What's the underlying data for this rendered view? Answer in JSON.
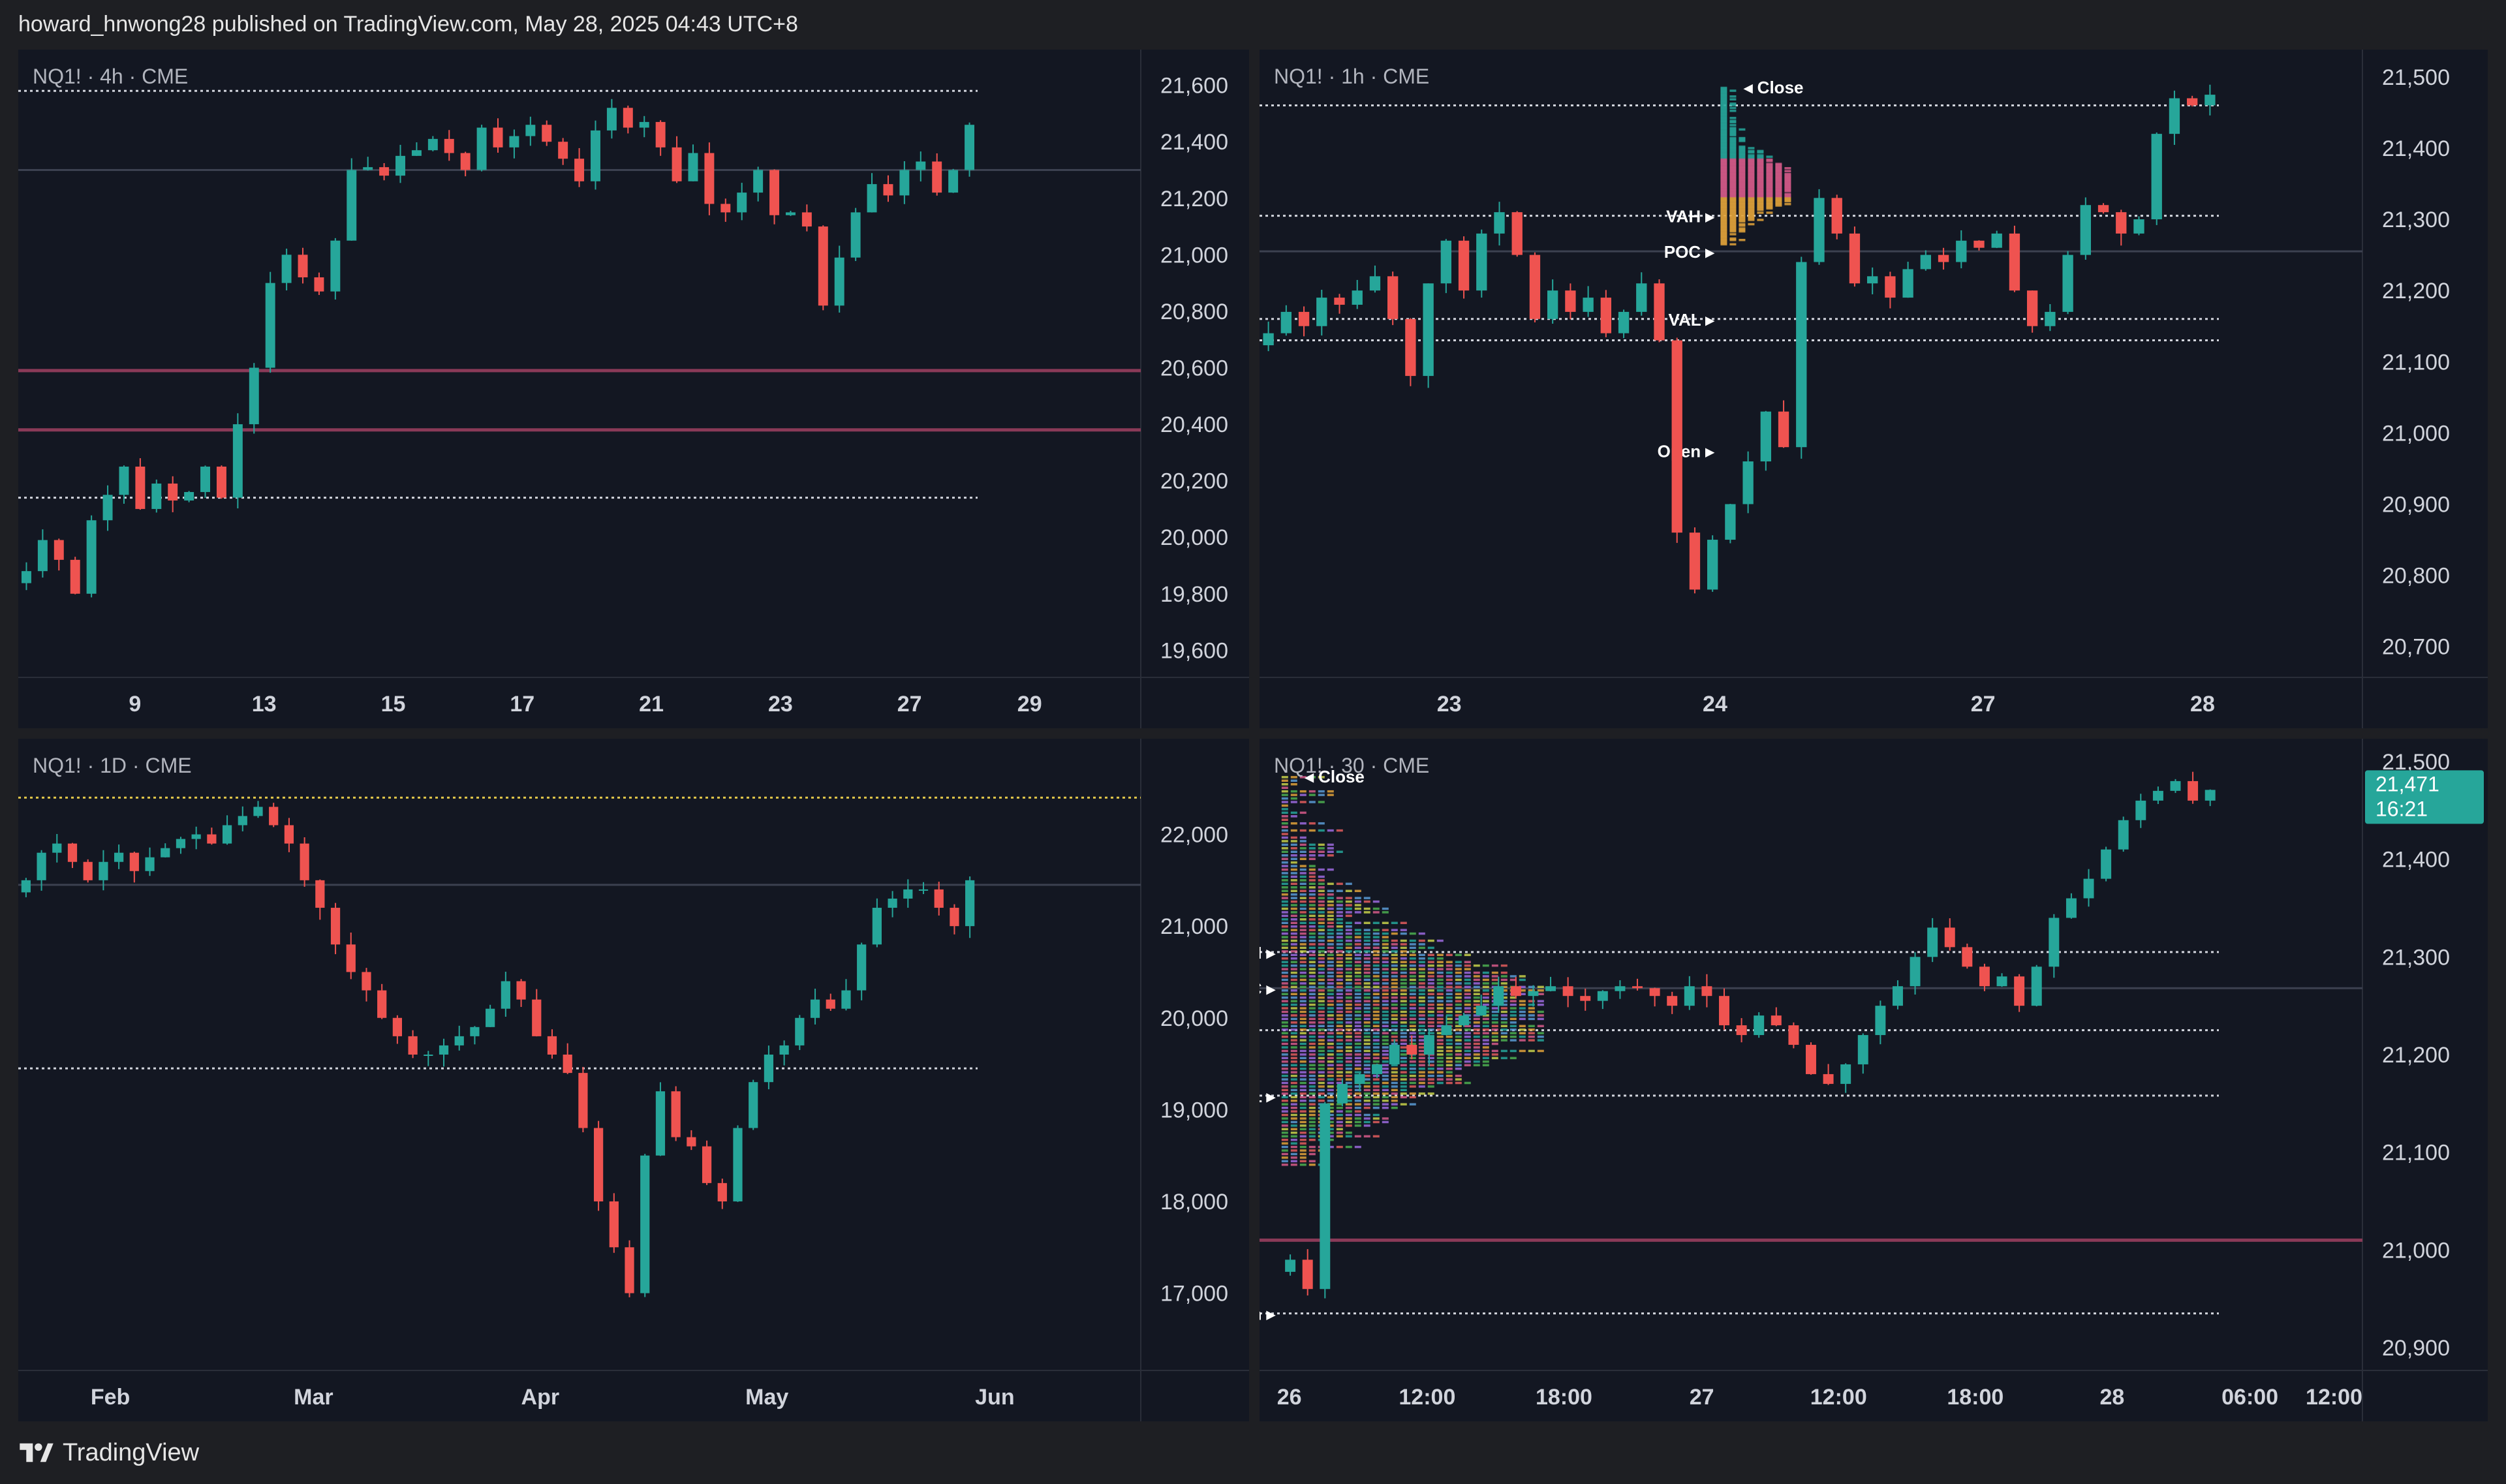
{
  "header": {
    "text": "howard_hnwong28 published on TradingView.com, May 28, 2025 04:43 UTC+8"
  },
  "footer": {
    "brand": "TradingView",
    "icon": "tradingview-logo-icon"
  },
  "colors": {
    "up": "#26a69a",
    "down": "#ef5350",
    "bg": "#131722",
    "level": "#8a3a58",
    "price_label": "#26a69a"
  },
  "chart_data": [
    {
      "type": "candlestick",
      "title": "NQ1! · 4h · CME",
      "y_ticks": [
        "21,600",
        "21,400",
        "21,200",
        "21,000",
        "20,800",
        "20,600",
        "20,400",
        "20,200",
        "20,000",
        "19,800",
        "19,600"
      ],
      "ylim": [
        19550,
        21680
      ],
      "x_ticks": [
        "9",
        "13",
        "15",
        "17",
        "21",
        "23",
        "27",
        "29"
      ],
      "levels": [
        {
          "value": 21580,
          "style": "dotted"
        },
        {
          "value": 21300,
          "style": "solid-gray"
        },
        {
          "value": 20590,
          "style": "solid-maroon"
        },
        {
          "value": 20380,
          "style": "solid-maroon"
        },
        {
          "value": 20140,
          "style": "dotted"
        }
      ],
      "closes": [
        19880,
        19990,
        19920,
        19800,
        20060,
        20150,
        20250,
        20100,
        20190,
        20130,
        20160,
        20250,
        20140,
        20400,
        20600,
        20900,
        21000,
        20920,
        20870,
        21050,
        21300,
        21310,
        21280,
        21350,
        21370,
        21410,
        21360,
        21300,
        21450,
        21380,
        21420,
        21460,
        21400,
        21340,
        21260,
        21440,
        21520,
        21450,
        21470,
        21380,
        21260,
        21360,
        21180,
        21150,
        21220,
        21300,
        21140,
        21150,
        21100,
        20820,
        20990,
        21150,
        21250,
        21210,
        21300,
        21330,
        21220,
        21300,
        21460
      ]
    },
    {
      "type": "candlestick",
      "title": "NQ1! · 1h · CME",
      "y_ticks": [
        "21,500",
        "21,400",
        "21,300",
        "21,200",
        "21,100",
        "21,000",
        "20,900",
        "20,800",
        "20,700"
      ],
      "ylim": [
        20675,
        21520
      ],
      "x_ticks": [
        "23",
        "24",
        "27",
        "28"
      ],
      "levels": [
        {
          "value": 21460,
          "style": "dotted"
        },
        {
          "value": 21305,
          "style": "dotted"
        },
        {
          "value": 21255,
          "style": "solid-gray"
        },
        {
          "value": 21160,
          "style": "dotted"
        },
        {
          "value": 21130,
          "style": "dotted"
        }
      ],
      "profile_labels": [
        "Close",
        "VAH",
        "POC",
        "VAL",
        "Open"
      ],
      "closes": [
        21140,
        21170,
        21150,
        21190,
        21180,
        21200,
        21220,
        21160,
        21080,
        21210,
        21270,
        21200,
        21280,
        21310,
        21250,
        21160,
        21200,
        21170,
        21190,
        21140,
        21170,
        21210,
        21130,
        20860,
        20780,
        20850,
        20900,
        20960,
        21030,
        20980,
        21240,
        21330,
        21280,
        21210,
        21220,
        21190,
        21230,
        21250,
        21240,
        21270,
        21260,
        21280,
        21200,
        21150,
        21170,
        21250,
        21320,
        21310,
        21280,
        21300,
        21420,
        21470,
        21460,
        21475
      ]
    },
    {
      "type": "candlestick",
      "title": "NQ1! · 1D · CME",
      "y_ticks": [
        "22,000",
        "21,000",
        "20,000",
        "19,000",
        "18,000",
        "17,000"
      ],
      "ylim": [
        16300,
        22900
      ],
      "x_ticks": [
        "Feb",
        "Mar",
        "Apr",
        "May",
        "Jun"
      ],
      "levels": [
        {
          "value": 22400,
          "style": "dotted-yellow"
        },
        {
          "value": 21450,
          "style": "solid-gray"
        },
        {
          "value": 19450,
          "style": "dotted"
        }
      ],
      "closes": [
        21500,
        21800,
        21900,
        21700,
        21500,
        21700,
        21800,
        21600,
        21750,
        21850,
        21950,
        22000,
        21900,
        22100,
        22200,
        22300,
        22100,
        21900,
        21500,
        21200,
        20800,
        20500,
        20300,
        20000,
        19800,
        19600,
        19600,
        19700,
        19800,
        19900,
        20100,
        20400,
        20200,
        19800,
        19600,
        19400,
        18800,
        18000,
        17500,
        17000,
        18500,
        19200,
        18700,
        18600,
        18200,
        18000,
        18800,
        19300,
        19600,
        19700,
        20000,
        20200,
        20100,
        20300,
        20800,
        21200,
        21300,
        21400,
        21400,
        21200,
        21000,
        21500
      ]
    },
    {
      "type": "candlestick",
      "title": "NQ1! · 30 · CME",
      "y_ticks": [
        "21,500",
        "21,400",
        "21,300",
        "21,200",
        "21,100",
        "21,000",
        "20,900"
      ],
      "ylim": [
        20890,
        21510
      ],
      "x_ticks": [
        "26",
        "12:00",
        "18:00",
        "27",
        "12:00",
        "18:00",
        "28",
        "06:00",
        "12:00"
      ],
      "last_price": "21,471",
      "countdown": "16:21",
      "levels": [
        {
          "value": 21305,
          "style": "dotted"
        },
        {
          "value": 21268,
          "style": "solid-gray"
        },
        {
          "value": 21225,
          "style": "dotted"
        },
        {
          "value": 21158,
          "style": "dotted"
        },
        {
          "value": 21010,
          "style": "solid-maroon"
        },
        {
          "value": 20935,
          "style": "dotted"
        }
      ],
      "profile_labels": [
        "Close",
        "VAH",
        "POC",
        "VAL",
        "Open"
      ],
      "closes": [
        20990,
        20960,
        21150,
        21170,
        21180,
        21190,
        21210,
        21200,
        21220,
        21230,
        21240,
        21250,
        21270,
        21260,
        21265,
        21270,
        21260,
        21255,
        21265,
        21270,
        21268,
        21260,
        21250,
        21270,
        21260,
        21230,
        21220,
        21240,
        21230,
        21210,
        21180,
        21170,
        21190,
        21220,
        21250,
        21270,
        21300,
        21330,
        21310,
        21290,
        21270,
        21280,
        21250,
        21290,
        21340,
        21360,
        21380,
        21410,
        21440,
        21460,
        21470,
        21480,
        21460,
        21471
      ]
    }
  ]
}
